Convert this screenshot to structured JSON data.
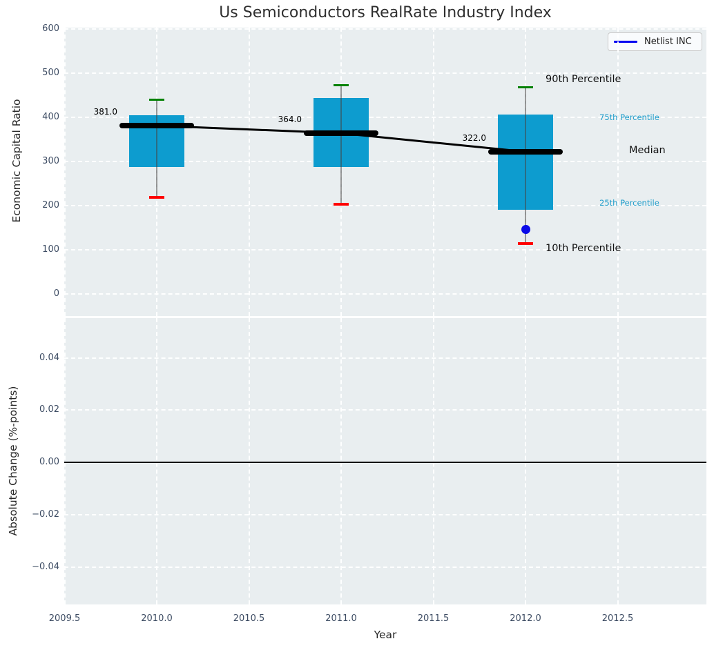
{
  "title": "Us Semiconductors RealRate Industry Index",
  "colors": {
    "panel_bg": "#e9eef0",
    "grid": "#ffffff",
    "tick_label": "#3d4c63",
    "box_fill": "#0d9ccf",
    "whisker": "#555555",
    "p90_cap_green": "#008000",
    "p10_cap_red": "#ff0000",
    "median_black": "#000000",
    "trend_black": "#000000",
    "netlist_blue": "#0a0ae8",
    "legend_line_blue": "#0000f0",
    "annotation_cyan": "#1e9cca",
    "zero_line": "#000000"
  },
  "legend": {
    "entries": [
      {
        "label": "Netlist INC",
        "color": "#0000f0"
      }
    ]
  },
  "chart_data": {
    "type": "boxplot",
    "title": "Us Semiconductors RealRate Industry Index",
    "xlabel": "Year",
    "xlim": [
      2009.5,
      2012.98
    ],
    "x_ticks": [
      {
        "v": 2009.5,
        "label": "2009.5"
      },
      {
        "v": 2010.0,
        "label": "2010.0"
      },
      {
        "v": 2010.5,
        "label": "2010.5"
      },
      {
        "v": 2011.0,
        "label": "2011.0"
      },
      {
        "v": 2011.5,
        "label": "2011.5"
      },
      {
        "v": 2012.0,
        "label": "2012.0"
      },
      {
        "v": 2012.5,
        "label": "2012.5"
      }
    ],
    "top_panel": {
      "ylabel": "Economic Capital Ratio",
      "ylim": [
        -50,
        603
      ],
      "grid": true,
      "y_ticks": [
        {
          "v": 600,
          "label": "600"
        },
        {
          "v": 500,
          "label": "500"
        },
        {
          "v": 400,
          "label": "400"
        },
        {
          "v": 300,
          "label": "300"
        },
        {
          "v": 200,
          "label": "200"
        },
        {
          "v": 100,
          "label": "100"
        },
        {
          "v": 0,
          "label": "0"
        }
      ],
      "boxes": [
        {
          "year": 2010,
          "median": 381,
          "median_label": "381.0",
          "q1": 287,
          "q3": 405,
          "p10": 219,
          "p90": 440
        },
        {
          "year": 2011,
          "median": 364,
          "median_label": "364.0",
          "q1": 288,
          "q3": 443,
          "p10": 203,
          "p90": 472
        },
        {
          "year": 2012,
          "median": 322,
          "median_label": "322.0",
          "q1": 190,
          "q3": 406,
          "p10": 114,
          "p90": 468
        }
      ],
      "trend_line": {
        "x": [
          2010,
          2011,
          2012
        ],
        "y": [
          381,
          364,
          322
        ]
      },
      "netlist_point": {
        "x": 2012,
        "y": 146
      },
      "annotations": [
        {
          "id": "p90",
          "label": "90th Percentile",
          "style": "large-black"
        },
        {
          "id": "p75",
          "label": "75th Percentile",
          "style": "small-cyan"
        },
        {
          "id": "median",
          "label": "Median",
          "style": "large-black"
        },
        {
          "id": "p25",
          "label": "25th Percentile",
          "style": "small-cyan"
        },
        {
          "id": "p10",
          "label": "10th Percentile",
          "style": "large-black"
        }
      ]
    },
    "bottom_panel": {
      "ylabel": "Absolute Change (%-points)",
      "ylim": [
        -0.054,
        0.055
      ],
      "grid": true,
      "y_ticks": [
        {
          "v": 0.04,
          "label": "0.04"
        },
        {
          "v": 0.02,
          "label": "0.02"
        },
        {
          "v": 0.0,
          "label": "0.00"
        },
        {
          "v": -0.02,
          "label": "−0.02"
        },
        {
          "v": -0.04,
          "label": "−0.04"
        }
      ],
      "zero_line": 0.0
    }
  }
}
